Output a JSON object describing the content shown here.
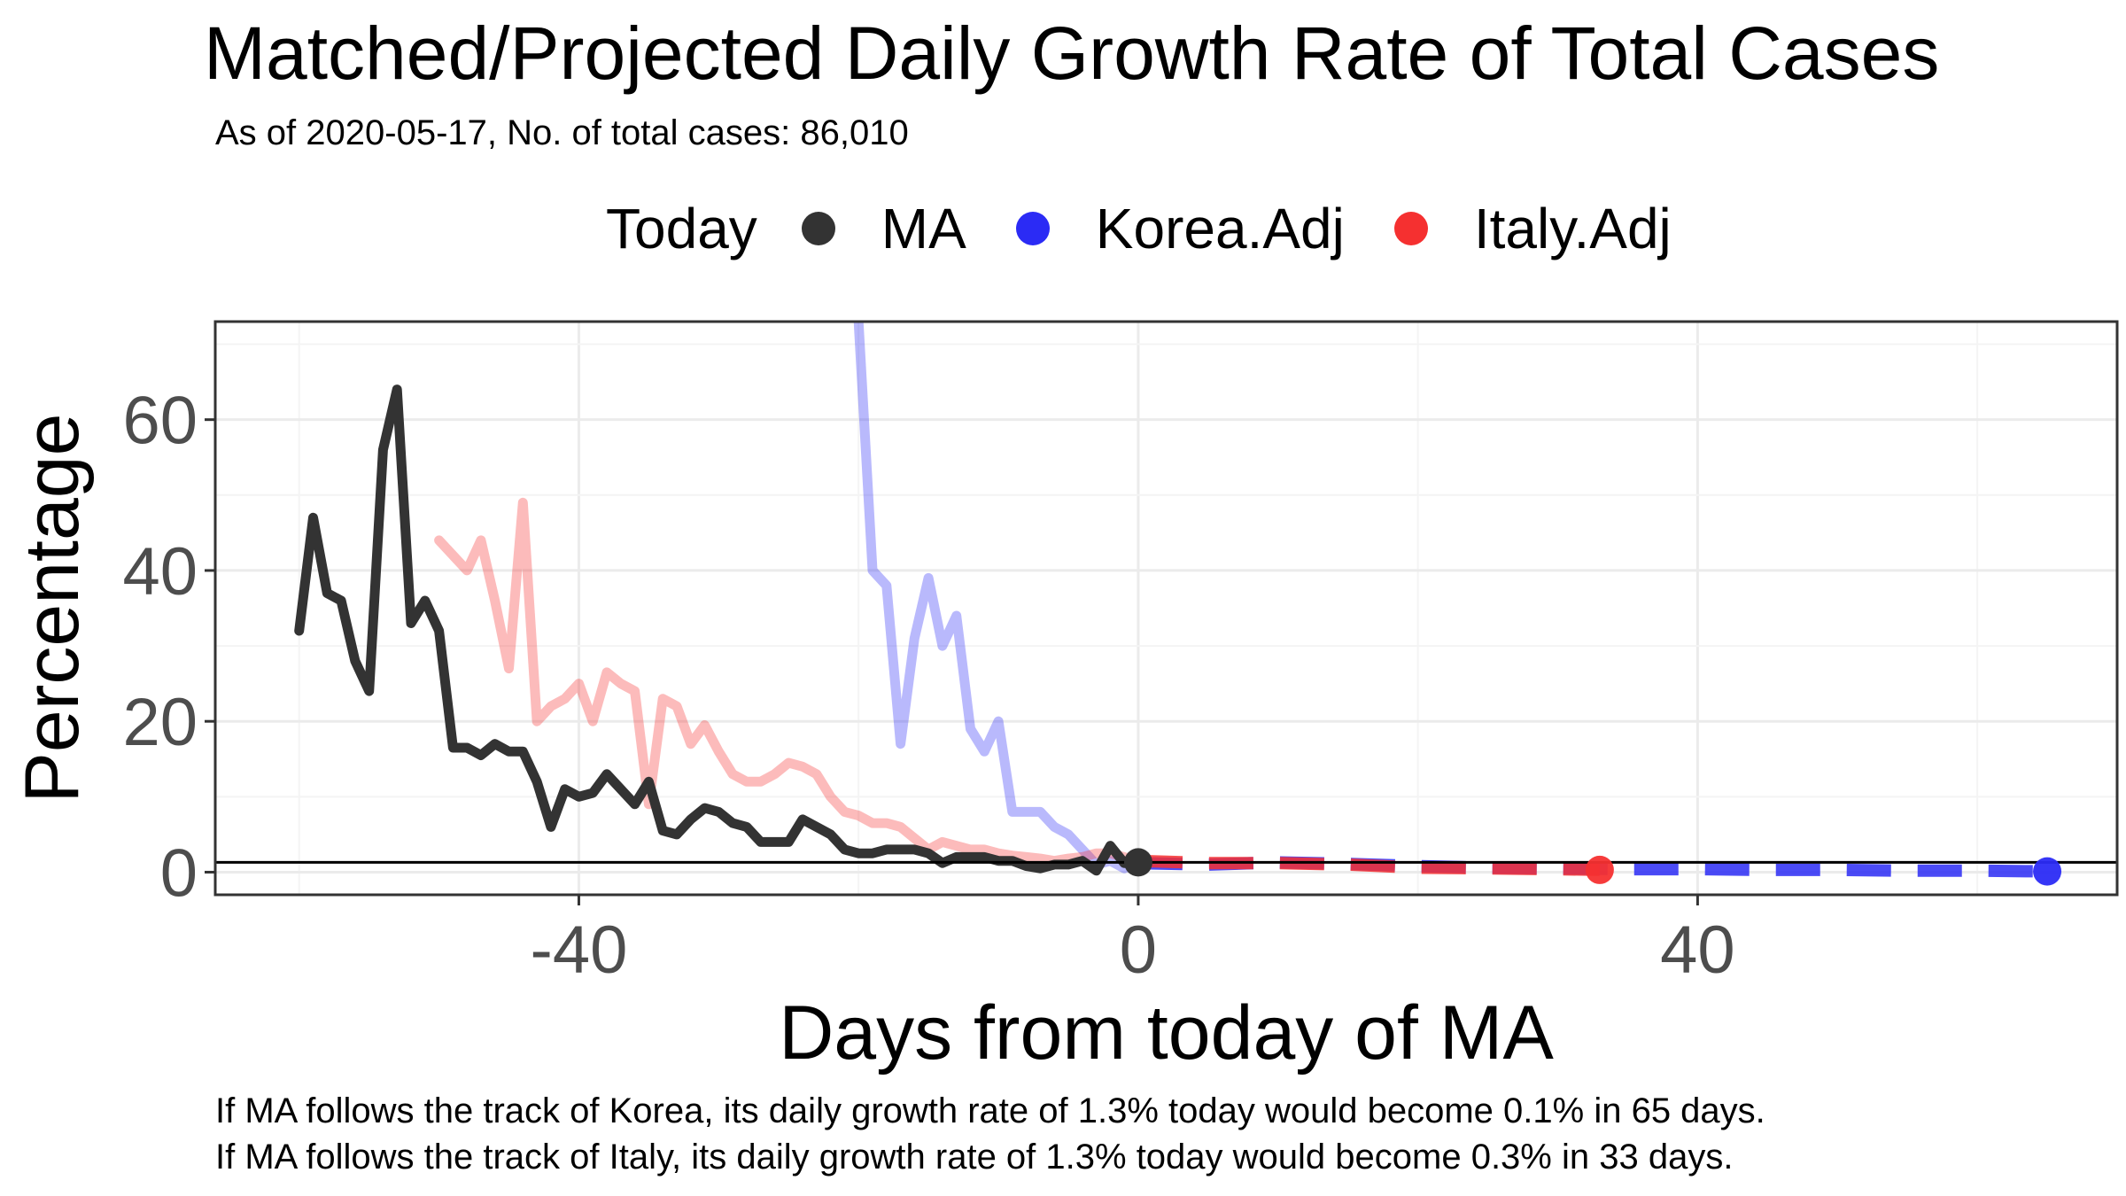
{
  "title": "Matched/Projected Daily Growth Rate of Total Cases",
  "subtitle": "As of 2020-05-17, No. of total cases: 86,010",
  "legend": {
    "title": "Today",
    "items": [
      {
        "label": "MA",
        "color": "#333333"
      },
      {
        "label": "Korea.Adj",
        "color": "#2B2BF5"
      },
      {
        "label": "Italy.Adj",
        "color": "#F53030"
      }
    ]
  },
  "captions": [
    "If MA follows the track of Korea, its daily growth rate of 1.3% today would become 0.1% in 65 days.",
    "If MA follows the track of Italy, its daily growth rate of 1.3% today would become 0.3% in 33 days."
  ],
  "chart_data": {
    "type": "line",
    "xlabel": "Days from today of MA",
    "ylabel": "Percentage",
    "xlim": [
      -66,
      70
    ],
    "ylim": [
      -3,
      73
    ],
    "xticks": [
      -40,
      0,
      40
    ],
    "yticks": [
      0,
      20,
      40,
      60
    ],
    "grid": true,
    "legend_position": "top",
    "hline": 1.3,
    "series": [
      {
        "name": "MA",
        "color": "#333333",
        "x": [
          -60,
          -59,
          -58,
          -57,
          -56,
          -55,
          -54,
          -53,
          -52,
          -51,
          -50,
          -49,
          -48,
          -47,
          -46,
          -45,
          -44,
          -43,
          -42,
          -41,
          -40,
          -39,
          -38,
          -37,
          -36,
          -35,
          -34,
          -33,
          -32,
          -31,
          -30,
          -29,
          -28,
          -27,
          -26,
          -25,
          -24,
          -23,
          -22,
          -21,
          -20,
          -19,
          -18,
          -17,
          -16,
          -15,
          -14,
          -13,
          -12,
          -11,
          -10,
          -9,
          -8,
          -7,
          -6,
          -5,
          -4,
          -3,
          -2,
          -1,
          0
        ],
        "y": [
          32,
          47,
          37,
          36,
          28,
          24,
          56,
          64,
          33,
          36,
          32,
          16.5,
          16.5,
          15.5,
          17,
          16,
          16,
          12,
          6,
          11,
          10,
          10.5,
          13,
          11,
          9,
          12,
          5.5,
          5,
          7,
          8.5,
          8,
          6.5,
          6,
          4,
          4,
          4,
          7,
          6,
          5,
          3,
          2.5,
          2.5,
          3,
          3,
          3,
          2.5,
          1.2,
          2,
          2,
          2,
          1.5,
          1.5,
          0.8,
          0.5,
          1,
          1,
          1.5,
          0.2,
          3.5,
          1.2,
          1.3
        ]
      },
      {
        "name": "Korea.Adj",
        "color": "#2B2BF5",
        "x": [
          -20,
          -19,
          -18,
          -17,
          -16,
          -15,
          -14,
          -13,
          -12,
          -11,
          -10,
          -9,
          -8,
          -7,
          -6,
          -5,
          -4,
          -3,
          -2,
          -1,
          0
        ],
        "y": [
          73,
          40,
          38,
          17,
          31,
          39,
          30,
          34,
          19,
          16,
          20,
          8,
          8,
          8,
          6,
          5,
          3,
          1,
          1.5,
          0.5,
          1.3
        ],
        "projection": {
          "x": [
            0,
            5,
            10,
            15,
            20,
            25,
            30,
            35,
            40,
            45,
            50,
            55,
            60,
            65
          ],
          "y": [
            1.2,
            1.0,
            1.3,
            1.1,
            0.8,
            0.6,
            0.5,
            0.4,
            0.4,
            0.3,
            0.3,
            0.2,
            0.2,
            0.1
          ]
        }
      },
      {
        "name": "Italy.Adj",
        "color": "#F53030",
        "x": [
          -50,
          -49,
          -48,
          -47,
          -46,
          -45,
          -44,
          -43,
          -42,
          -41,
          -40,
          -39,
          -38,
          -37,
          -36,
          -35,
          -34,
          -33,
          -32,
          -31,
          -30,
          -29,
          -28,
          -27,
          -26,
          -25,
          -24,
          -23,
          -22,
          -21,
          -20,
          -19,
          -18,
          -17,
          -16,
          -15,
          -14,
          -13,
          -12,
          -11,
          -10,
          -9,
          -8,
          -7,
          -6,
          -5,
          -4,
          -3,
          -2,
          -1,
          0
        ],
        "y": [
          44,
          42,
          40,
          44,
          36,
          27,
          49,
          20,
          22,
          23,
          25,
          20,
          26.5,
          25,
          24,
          9,
          23,
          22,
          17,
          19.5,
          16,
          13,
          12,
          12,
          13,
          14.5,
          14,
          13,
          10,
          8,
          7.5,
          6.5,
          6.5,
          6,
          4.5,
          3,
          4,
          3.5,
          3,
          3,
          2.5,
          2.2,
          2,
          1.8,
          1.5,
          1.8,
          2,
          2.5,
          2.5,
          2,
          1.3
        ],
        "projection": {
          "x": [
            0,
            5,
            10,
            15,
            20,
            25,
            30,
            33
          ],
          "y": [
            1.5,
            1.2,
            1.2,
            1.0,
            0.6,
            0.5,
            0.4,
            0.3
          ]
        }
      }
    ]
  }
}
